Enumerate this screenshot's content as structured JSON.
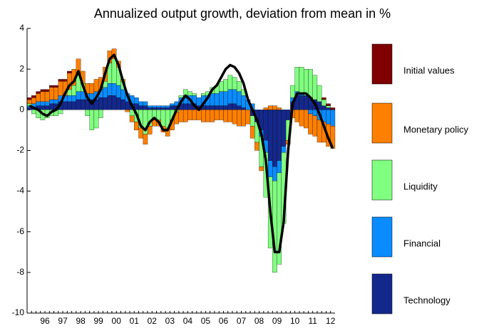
{
  "chart_data": {
    "type": "stacked-bar-line",
    "title": "Annualized output growth, deviation from mean in %",
    "categories": [
      null,
      null,
      null,
      "96",
      null,
      null,
      null,
      "97",
      null,
      null,
      null,
      "98",
      null,
      null,
      null,
      "99",
      null,
      null,
      null,
      "00",
      null,
      null,
      null,
      "01",
      null,
      null,
      null,
      "02",
      null,
      null,
      null,
      "03",
      null,
      null,
      null,
      "04",
      null,
      null,
      null,
      "05",
      null,
      null,
      null,
      "06",
      null,
      null,
      null,
      "07",
      null,
      null,
      null,
      "08",
      null,
      null,
      null,
      "09",
      null,
      null,
      null,
      "10",
      null,
      null,
      null,
      "11",
      null,
      null,
      null,
      "12",
      null
    ],
    "ylim": [
      -10,
      4
    ],
    "yticks": [
      -10,
      -8,
      -6,
      -4,
      -2,
      0,
      2,
      4
    ],
    "series": [
      {
        "name": "Initial values",
        "color": "#7f0000",
        "values": [
          0.1,
          0.1,
          0.1,
          0.1,
          0.1,
          0.1,
          0.1,
          0.1,
          0.1,
          0.1,
          0,
          0,
          0,
          0,
          0,
          0,
          0,
          0,
          0,
          0,
          0,
          0,
          0,
          0,
          0,
          0,
          0,
          0,
          0,
          0,
          0,
          0,
          0,
          0,
          0,
          0,
          0,
          0,
          0,
          0,
          0,
          0,
          0,
          0,
          0,
          0,
          0,
          0,
          0,
          0,
          0,
          0,
          0,
          0,
          0,
          0,
          0,
          0,
          0,
          0,
          0,
          0,
          0,
          0,
          0,
          0,
          0.1,
          0.1,
          0.1
        ]
      },
      {
        "name": "Monetary policy",
        "color": "#ff7f00",
        "values": [
          0.2,
          0.3,
          0.4,
          0.5,
          0.5,
          0.6,
          0.6,
          0.7,
          0.7,
          0.8,
          0.8,
          0.7,
          0.6,
          0.5,
          0.5,
          0.6,
          0.6,
          0.7,
          0.6,
          0.5,
          0.3,
          0.1,
          -0.1,
          -0.3,
          -0.4,
          -0.5,
          -0.5,
          -0.4,
          -0.3,
          -0.3,
          -0.3,
          -0.4,
          -0.5,
          -0.6,
          -0.6,
          -0.6,
          -0.5,
          -0.5,
          -0.5,
          -0.6,
          -0.6,
          -0.6,
          -0.5,
          -0.5,
          -0.6,
          -0.6,
          -0.7,
          -0.8,
          -0.8,
          -0.7,
          -0.6,
          -0.4,
          -0.2,
          0.1,
          0.2,
          0.2,
          0.1,
          0.0,
          -0.2,
          -0.4,
          -0.6,
          -0.8,
          -0.9,
          -1.0,
          -1.0,
          -1.1,
          -1.0,
          -1.1,
          -1.1
        ]
      },
      {
        "name": "Liquidity",
        "color": "#80ff80",
        "values": [
          0.1,
          -0.2,
          -0.4,
          -0.5,
          -0.4,
          -0.3,
          -0.3,
          -0.2,
          0.0,
          0.3,
          0.5,
          0.9,
          0.4,
          -0.3,
          -1.0,
          -0.9,
          -0.4,
          0.3,
          1.0,
          1.2,
          0.9,
          0.4,
          0.0,
          -0.3,
          -0.6,
          -0.9,
          -1.2,
          -0.8,
          -0.5,
          -0.5,
          -0.8,
          -0.9,
          -0.5,
          -0.1,
          0.1,
          0.3,
          0.2,
          0.1,
          0.0,
          0.1,
          0.2,
          0.3,
          0.4,
          0.5,
          0.6,
          0.7,
          0.6,
          0.5,
          0.3,
          0.0,
          -0.5,
          -1.0,
          -1.5,
          -2.2,
          -3.5,
          -4.5,
          -4.5,
          -3.5,
          -1.0,
          0.6,
          1.2,
          1.3,
          1.3,
          1.4,
          1.2,
          0.8,
          0.3,
          0.1,
          0.0
        ]
      },
      {
        "name": "Financial",
        "color": "#0a8cff",
        "values": [
          0.1,
          0.2,
          0.2,
          0.2,
          0.2,
          0.2,
          0.2,
          0.3,
          0.3,
          0.3,
          0.3,
          0.4,
          0.4,
          0.3,
          0.3,
          0.4,
          0.4,
          0.5,
          0.6,
          0.6,
          0.6,
          0.5,
          0.4,
          0.4,
          0.3,
          0.2,
          0.2,
          0.1,
          0.1,
          0.1,
          0.1,
          0.1,
          0.1,
          0.2,
          0.3,
          0.4,
          0.4,
          0.4,
          0.4,
          0.5,
          0.5,
          0.6,
          0.6,
          0.7,
          0.7,
          0.7,
          0.7,
          0.7,
          0.6,
          0.5,
          0.3,
          0.0,
          -0.3,
          -0.6,
          -0.8,
          -0.7,
          -0.6,
          -0.3,
          0.0,
          0.2,
          0.2,
          0.1,
          0.0,
          -0.2,
          -0.3,
          -0.5,
          -0.6,
          -0.7,
          -0.8
        ]
      },
      {
        "name": "Technology",
        "color": "#14288c",
        "values": [
          0.1,
          0.1,
          0.2,
          0.2,
          0.2,
          0.3,
          0.3,
          0.4,
          0.4,
          0.4,
          0.4,
          0.5,
          0.5,
          0.5,
          0.5,
          0.5,
          0.6,
          0.6,
          0.7,
          0.7,
          0.6,
          0.5,
          0.4,
          0.3,
          0.3,
          0.2,
          0.2,
          0.1,
          0.1,
          0.1,
          0.1,
          0.1,
          0.2,
          0.2,
          0.3,
          0.3,
          0.3,
          0.3,
          0.2,
          0.2,
          0.2,
          0.2,
          0.2,
          0.2,
          0.2,
          0.3,
          0.3,
          0.2,
          0.1,
          0.0,
          -0.3,
          -0.6,
          -1.0,
          -1.5,
          -2.5,
          -2.8,
          -2.5,
          -1.8,
          -0.5,
          0.4,
          0.7,
          0.7,
          0.7,
          0.6,
          0.5,
          0.4,
          0.2,
          0.1,
          0.0
        ]
      }
    ],
    "line": {
      "color": "#000000",
      "values": [
        0.2,
        0.1,
        0.0,
        -0.2,
        -0.3,
        -0.1,
        0.0,
        0.3,
        0.8,
        1.2,
        1.4,
        1.9,
        1.2,
        0.6,
        0.3,
        0.6,
        1.0,
        1.8,
        2.5,
        2.7,
        2.2,
        1.4,
        0.7,
        0.2,
        -0.2,
        -0.8,
        -1.0,
        -0.6,
        -0.4,
        -0.6,
        -1.0,
        -1.0,
        -0.5,
        0.0,
        0.4,
        0.7,
        0.5,
        0.2,
        0.0,
        0.3,
        0.6,
        1.0,
        1.2,
        1.6,
        2.0,
        2.2,
        2.1,
        1.8,
        1.3,
        0.5,
        0.0,
        -0.5,
        -1.2,
        -2.5,
        -5.0,
        -7.0,
        -7.0,
        -5.5,
        -2.0,
        0.3,
        0.8,
        0.8,
        0.8,
        0.6,
        0.3,
        -0.2,
        -0.8,
        -1.4,
        -1.9
      ]
    }
  }
}
